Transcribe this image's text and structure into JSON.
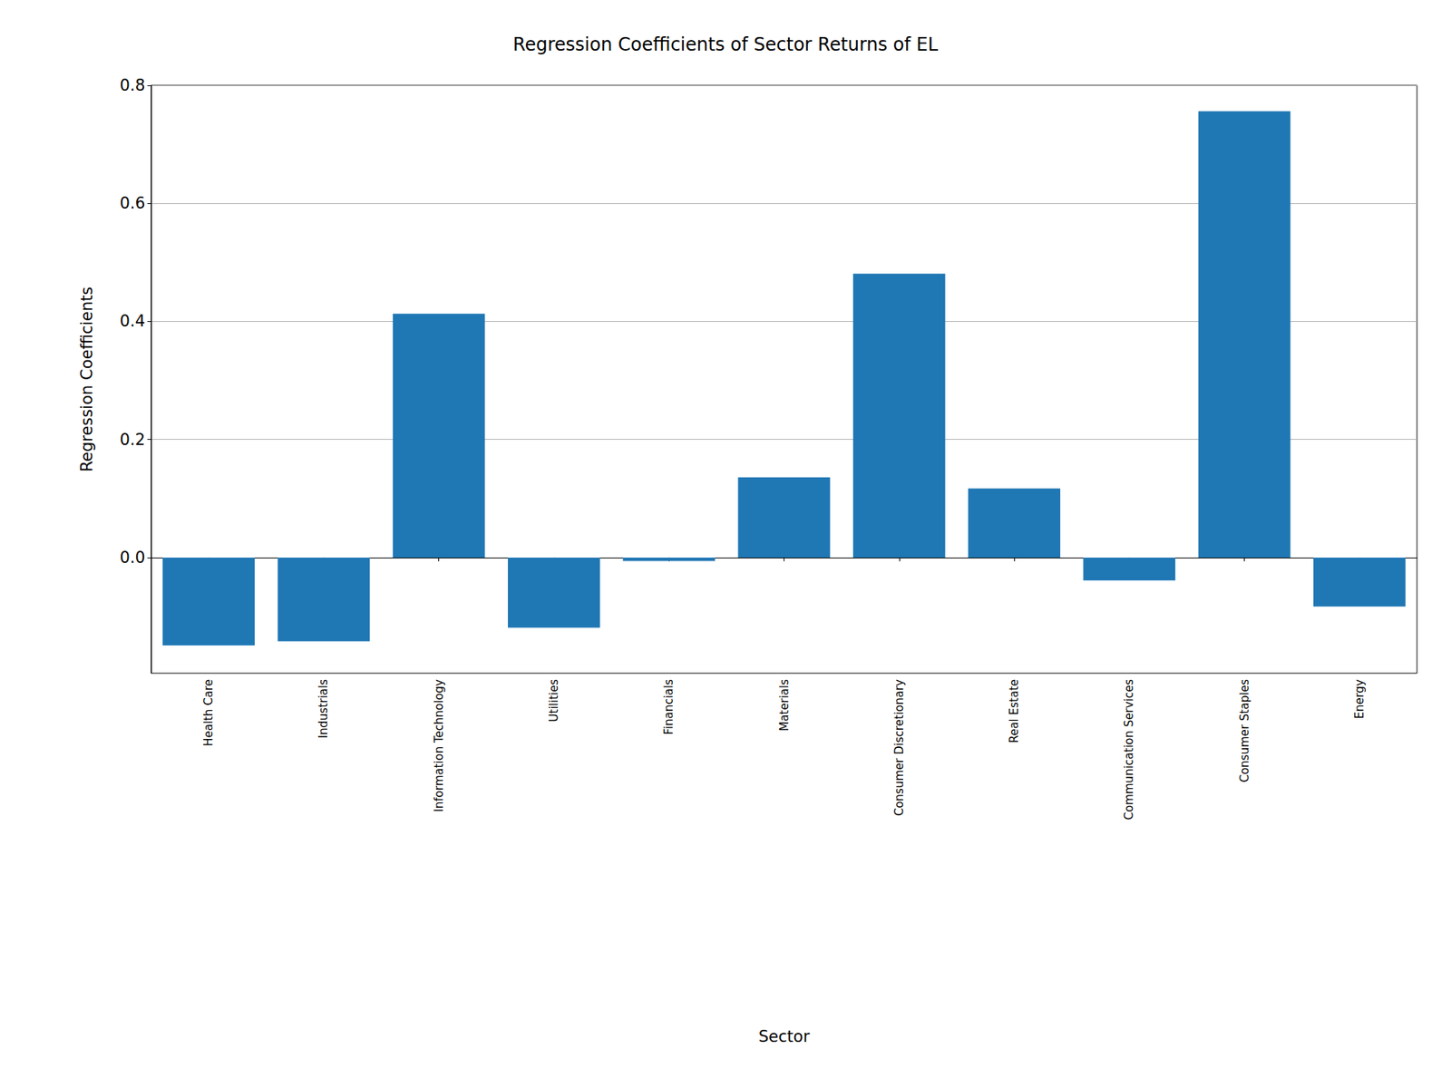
{
  "chart_data": {
    "type": "bar",
    "title": "Regression Coefficients of Sector Returns of EL",
    "x_label": "Sector",
    "y_label": "Regression Coefficients",
    "categories": [
      "Health Care",
      "Industrials",
      "Information Technology",
      "Utilities",
      "Financials",
      "Materials",
      "Consumer Discretionary",
      "Real Estate",
      "Communication Services",
      "Consumer Staples",
      "Energy"
    ],
    "values": [
      -0.149,
      -0.142,
      0.413,
      -0.119,
      -0.006,
      0.136,
      0.481,
      0.117,
      -0.039,
      0.756,
      -0.083
    ],
    "color": "#1f77b4",
    "ylim": [
      -0.196,
      0.8
    ],
    "yticks": [
      {
        "value": 0,
        "label": "0.0"
      },
      {
        "value": 0.2,
        "label": "0.2"
      },
      {
        "value": 0.4,
        "label": "0.4"
      },
      {
        "value": 0.6,
        "label": "0.6"
      },
      {
        "value": 0.8,
        "label": "0.8"
      }
    ],
    "grid": true
  }
}
